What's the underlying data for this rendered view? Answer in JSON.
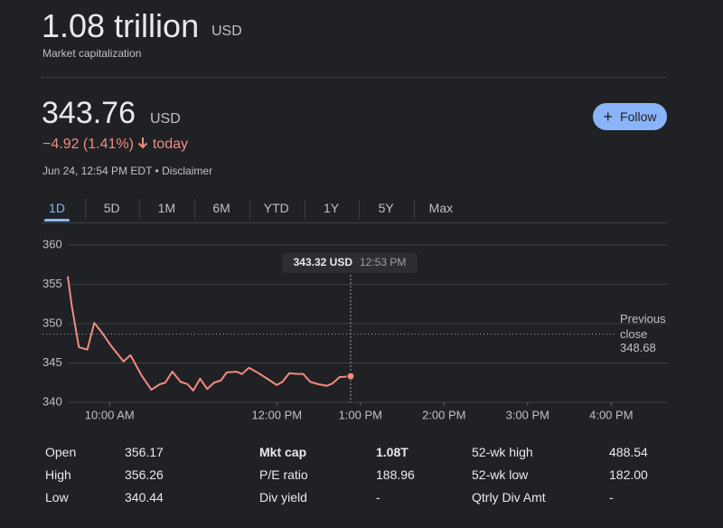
{
  "header": {
    "market_cap": "1.08 trillion",
    "market_cap_unit": "USD",
    "market_cap_label": "Market capitalization",
    "price": "343.76",
    "currency": "USD",
    "change": "−4.92 (1.41%)",
    "change_period": "today",
    "timestamp": "Jun 24, 12:54 PM EDT",
    "disclaimer": "Disclaimer",
    "follow": "Follow"
  },
  "tabs": [
    "1D",
    "5D",
    "1M",
    "6M",
    "YTD",
    "1Y",
    "5Y",
    "Max"
  ],
  "selected_tab": 0,
  "chart_data": {
    "type": "line",
    "color": "#f28b82",
    "x": [
      570,
      573,
      578,
      584,
      589,
      594,
      601,
      610,
      615,
      623,
      630,
      636,
      640,
      645,
      651,
      656,
      660,
      665,
      670,
      675,
      680,
      684,
      691,
      695,
      700,
      707,
      714,
      720,
      724,
      729,
      735,
      739,
      744,
      750,
      756,
      760,
      765,
      773
    ],
    "values": [
      356.0,
      352.1,
      347.0,
      346.7,
      350.1,
      349.0,
      347.2,
      345.2,
      346.0,
      343.4,
      341.6,
      342.3,
      342.5,
      343.9,
      342.6,
      342.3,
      341.5,
      343.0,
      341.7,
      342.5,
      342.8,
      343.8,
      343.9,
      343.6,
      344.4,
      343.7,
      342.9,
      342.2,
      342.6,
      343.7,
      343.6,
      343.6,
      342.6,
      342.3,
      342.1,
      342.4,
      343.2,
      343.32
    ],
    "xlim": [
      570,
      1000
    ],
    "ylim": [
      340,
      360
    ],
    "yticks": [
      340,
      345,
      350,
      355,
      360
    ],
    "xticks": [
      {
        "value": 600,
        "label": "10:00 AM"
      },
      {
        "value": 720,
        "label": "12:00 PM"
      },
      {
        "value": 780,
        "label": "1:00 PM"
      },
      {
        "value": 840,
        "label": "2:00 PM"
      },
      {
        "value": 900,
        "label": "3:00 PM"
      },
      {
        "value": 960,
        "label": "4:00 PM"
      }
    ],
    "grid": true,
    "previous_close": {
      "label": "Previous close",
      "value": 348.68
    },
    "tooltip": {
      "x": 773,
      "price": "343.32 USD",
      "time": "12:53 PM"
    }
  },
  "stats": [
    [
      [
        "Open",
        "356.17"
      ],
      [
        "High",
        "356.26"
      ],
      [
        "Low",
        "340.44"
      ]
    ],
    [
      [
        "Mkt cap",
        "1.08T"
      ],
      [
        "P/E ratio",
        "188.96"
      ],
      [
        "Div yield",
        "-"
      ]
    ],
    [
      [
        "52-wk high",
        "488.54"
      ],
      [
        "52-wk low",
        "182.00"
      ],
      [
        "Qtrly Div Amt",
        "-"
      ]
    ]
  ]
}
